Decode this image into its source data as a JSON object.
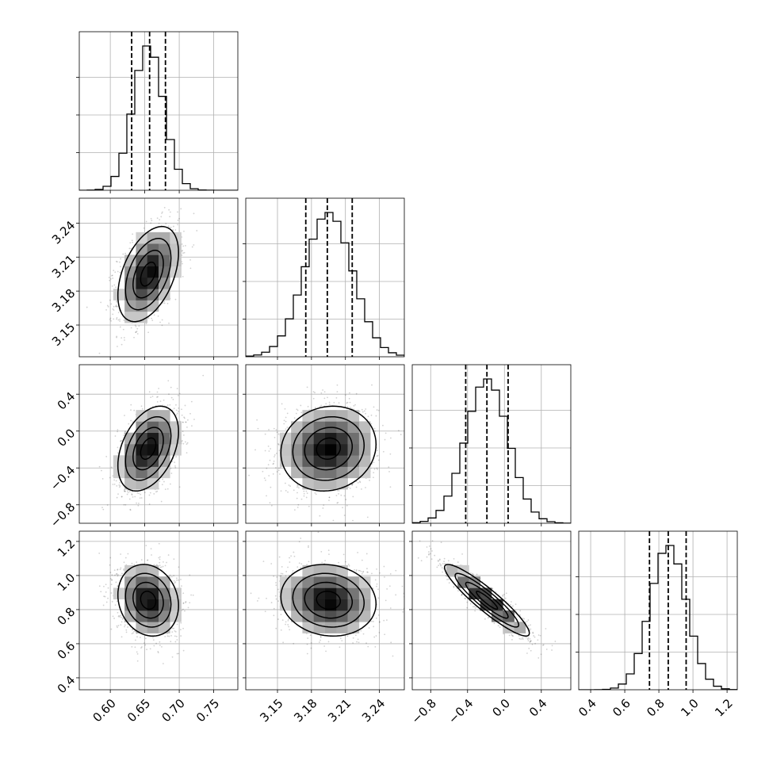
{
  "chart_data": {
    "type": "corner",
    "description_free": true,
    "grid": true,
    "colors": {
      "contour": "#000000",
      "points": "#000000",
      "density_dark": "#000000",
      "density_light": "#f2f2f2",
      "grid": "#b0b0b0"
    },
    "parameters": [
      {
        "range": [
          0.555,
          0.785
        ],
        "ticks": [
          0.6,
          0.65,
          0.7,
          0.75
        ],
        "tick_labels": [
          "0.60",
          "0.65",
          "0.70",
          "0.75"
        ],
        "mean": 0.655,
        "sd": 0.022,
        "quantiles": [
          0.631,
          0.657,
          0.68
        ]
      },
      {
        "range": [
          3.122,
          3.262
        ],
        "ticks": [
          3.15,
          3.18,
          3.21,
          3.24
        ],
        "tick_labels": [
          "3.15",
          "3.18",
          "3.21",
          "3.24"
        ],
        "mean": 3.195,
        "sd": 0.021,
        "quantiles": [
          3.175,
          3.194,
          3.216
        ]
      },
      {
        "range": [
          -1.0,
          0.72
        ],
        "ticks": [
          -0.8,
          -0.4,
          0.0,
          0.4
        ],
        "tick_labels": [
          "−0.8",
          "−0.4",
          "0.0",
          "0.4"
        ],
        "mean": -0.19,
        "sd": 0.23,
        "quantiles": [
          -0.42,
          -0.19,
          0.04
        ]
      },
      {
        "range": [
          0.33,
          1.26
        ],
        "ticks": [
          0.4,
          0.6,
          0.8,
          1.0,
          1.2
        ],
        "tick_labels": [
          "0.4",
          "0.6",
          "0.8",
          "1.0",
          "1.2"
        ],
        "mean": 0.855,
        "sd": 0.105,
        "quantiles": [
          0.745,
          0.855,
          0.96
        ]
      }
    ],
    "correlations": [
      [
        1.0,
        0.45,
        0.4,
        -0.15
      ],
      [
        0.45,
        1.0,
        0.1,
        -0.1
      ],
      [
        0.4,
        0.1,
        1.0,
        -0.92
      ],
      [
        -0.15,
        -0.1,
        -0.92,
        1.0
      ]
    ],
    "contour_levels_sigma": [
      0.5,
      1.0,
      1.5,
      2.0
    ]
  }
}
